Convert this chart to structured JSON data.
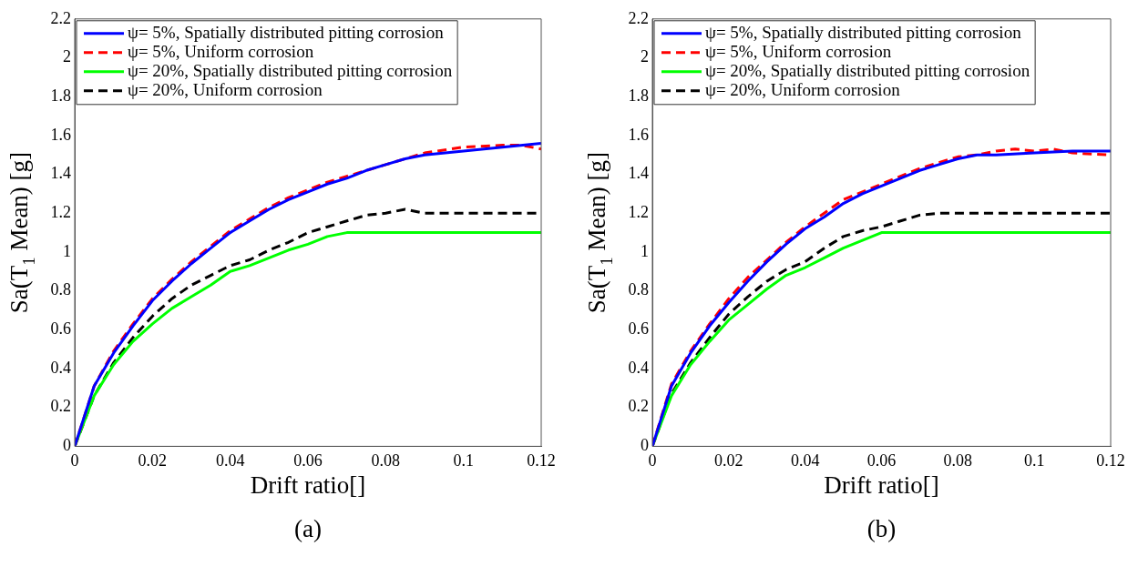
{
  "chart_data": [
    {
      "type": "line",
      "xlabel": "Drift ratio[]",
      "ylabel": "Sa(T$_{1}$ Mean) [g]",
      "annotations": [
        "(a)"
      ],
      "legend": "top left",
      "grid": false,
      "marker": "none",
      "xlim": [
        0,
        0.12
      ],
      "xticks": [
        0,
        0.02,
        0.04,
        0.06,
        0.08,
        0.1,
        0.12
      ],
      "ylim": [
        0,
        2.2
      ],
      "yticks": [
        0,
        0.2,
        0.4,
        0.6,
        0.8,
        1,
        1.2,
        1.4,
        1.6,
        1.8,
        2,
        2.2
      ],
      "series": [
        {
          "name": "ψ= 5%, Spatially distributed pitting corrosion",
          "color": "#0000ff",
          "line_style": "solid",
          "x": [
            0,
            0.005,
            0.01,
            0.015,
            0.02,
            0.025,
            0.03,
            0.035,
            0.04,
            0.045,
            0.05,
            0.055,
            0.06,
            0.065,
            0.07,
            0.075,
            0.08,
            0.085,
            0.09,
            0.1,
            0.11,
            0.12
          ],
          "values": [
            0,
            0.31,
            0.48,
            0.62,
            0.75,
            0.85,
            0.94,
            1.02,
            1.1,
            1.16,
            1.22,
            1.27,
            1.31,
            1.35,
            1.38,
            1.42,
            1.45,
            1.48,
            1.5,
            1.52,
            1.54,
            1.56
          ]
        },
        {
          "name": "ψ= 5%, Uniform corrosion",
          "color": "#ff0000",
          "line_style": "dashed",
          "x": [
            0,
            0.005,
            0.01,
            0.015,
            0.02,
            0.025,
            0.03,
            0.035,
            0.04,
            0.045,
            0.05,
            0.055,
            0.06,
            0.065,
            0.07,
            0.075,
            0.08,
            0.085,
            0.09,
            0.1,
            0.11,
            0.115,
            0.12
          ],
          "values": [
            0,
            0.31,
            0.49,
            0.63,
            0.76,
            0.86,
            0.95,
            1.03,
            1.11,
            1.17,
            1.23,
            1.28,
            1.32,
            1.36,
            1.39,
            1.42,
            1.45,
            1.48,
            1.51,
            1.54,
            1.55,
            1.55,
            1.53
          ]
        },
        {
          "name": "ψ= 20%, Spatially distributed pitting corrosion",
          "color": "#00ff00",
          "line_style": "solid",
          "x": [
            0,
            0.005,
            0.01,
            0.015,
            0.02,
            0.025,
            0.03,
            0.035,
            0.04,
            0.045,
            0.05,
            0.055,
            0.06,
            0.065,
            0.07,
            0.12
          ],
          "values": [
            0,
            0.26,
            0.42,
            0.54,
            0.63,
            0.71,
            0.77,
            0.83,
            0.9,
            0.93,
            0.97,
            1.01,
            1.04,
            1.08,
            1.1,
            1.1
          ]
        },
        {
          "name": "ψ= 20%, Uniform corrosion",
          "color": "#000000",
          "line_style": "dashed",
          "x": [
            0,
            0.005,
            0.01,
            0.015,
            0.02,
            0.025,
            0.03,
            0.035,
            0.04,
            0.045,
            0.05,
            0.055,
            0.06,
            0.065,
            0.07,
            0.075,
            0.08,
            0.085,
            0.09,
            0.12
          ],
          "values": [
            0,
            0.26,
            0.43,
            0.56,
            0.67,
            0.76,
            0.83,
            0.88,
            0.93,
            0.96,
            1.01,
            1.05,
            1.1,
            1.13,
            1.16,
            1.19,
            1.2,
            1.22,
            1.2,
            1.2
          ]
        }
      ]
    },
    {
      "type": "line",
      "xlabel": "Drift ratio[]",
      "ylabel": "Sa(T$_{1}$ Mean) [g]",
      "annotations": [
        "(b)"
      ],
      "legend": "top left",
      "grid": false,
      "marker": "none",
      "xlim": [
        0,
        0.12
      ],
      "xticks": [
        0,
        0.02,
        0.04,
        0.06,
        0.08,
        0.1,
        0.12
      ],
      "ylim": [
        0,
        2.2
      ],
      "yticks": [
        0,
        0.2,
        0.4,
        0.6,
        0.8,
        1,
        1.2,
        1.4,
        1.6,
        1.8,
        2,
        2.2
      ],
      "series": [
        {
          "name": "ψ= 5%, Spatially distributed pitting corrosion",
          "color": "#0000ff",
          "line_style": "solid",
          "x": [
            0,
            0.005,
            0.01,
            0.015,
            0.02,
            0.025,
            0.03,
            0.035,
            0.04,
            0.045,
            0.05,
            0.055,
            0.06,
            0.065,
            0.07,
            0.075,
            0.08,
            0.085,
            0.09,
            0.1,
            0.11,
            0.12
          ],
          "values": [
            0,
            0.31,
            0.48,
            0.62,
            0.74,
            0.85,
            0.95,
            1.04,
            1.12,
            1.18,
            1.25,
            1.3,
            1.34,
            1.38,
            1.42,
            1.45,
            1.48,
            1.5,
            1.5,
            1.51,
            1.52,
            1.52
          ]
        },
        {
          "name": "ψ= 5%, Uniform corrosion",
          "color": "#ff0000",
          "line_style": "dashed",
          "x": [
            0,
            0.005,
            0.01,
            0.015,
            0.02,
            0.025,
            0.03,
            0.035,
            0.04,
            0.045,
            0.05,
            0.055,
            0.06,
            0.065,
            0.07,
            0.075,
            0.08,
            0.085,
            0.09,
            0.095,
            0.1,
            0.105,
            0.11,
            0.12
          ],
          "values": [
            0,
            0.32,
            0.49,
            0.63,
            0.76,
            0.87,
            0.96,
            1.05,
            1.13,
            1.2,
            1.27,
            1.31,
            1.35,
            1.39,
            1.43,
            1.46,
            1.49,
            1.5,
            1.52,
            1.53,
            1.52,
            1.53,
            1.51,
            1.5
          ]
        },
        {
          "name": "ψ= 20%, Spatially distributed pitting corrosion",
          "color": "#00ff00",
          "line_style": "solid",
          "x": [
            0,
            0.005,
            0.01,
            0.015,
            0.02,
            0.025,
            0.03,
            0.035,
            0.04,
            0.045,
            0.05,
            0.055,
            0.06,
            0.12
          ],
          "values": [
            0,
            0.26,
            0.42,
            0.54,
            0.65,
            0.73,
            0.81,
            0.88,
            0.92,
            0.97,
            1.02,
            1.06,
            1.1,
            1.1
          ]
        },
        {
          "name": "ψ= 20%, Uniform corrosion",
          "color": "#000000",
          "line_style": "dashed",
          "x": [
            0,
            0.005,
            0.01,
            0.015,
            0.02,
            0.025,
            0.03,
            0.035,
            0.04,
            0.045,
            0.05,
            0.055,
            0.06,
            0.065,
            0.07,
            0.075,
            0.12
          ],
          "values": [
            0,
            0.27,
            0.43,
            0.56,
            0.68,
            0.77,
            0.85,
            0.91,
            0.95,
            1.02,
            1.08,
            1.11,
            1.13,
            1.16,
            1.19,
            1.2,
            1.2
          ]
        }
      ]
    }
  ]
}
